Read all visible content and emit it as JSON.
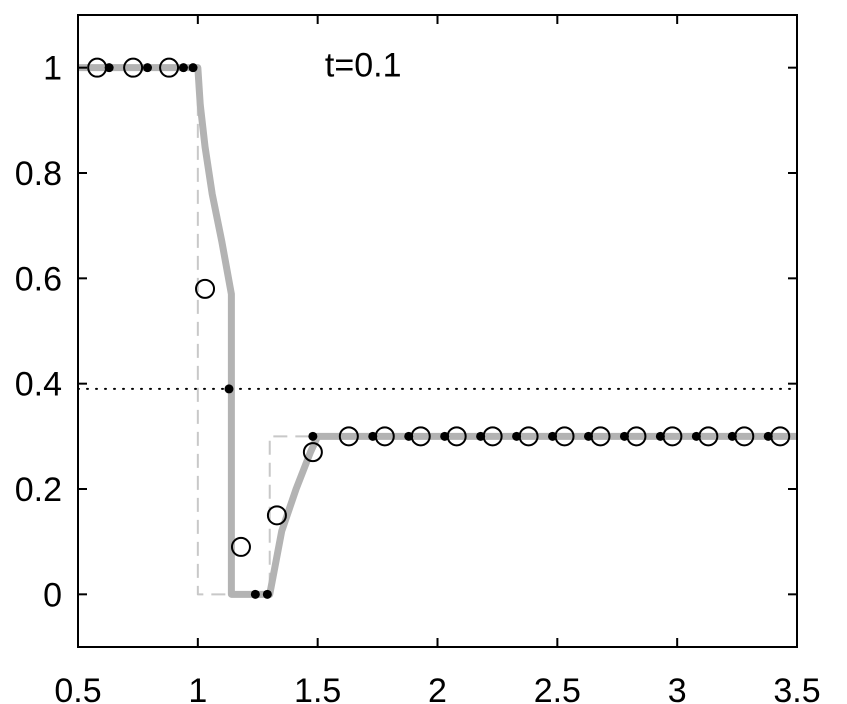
{
  "chart_data": {
    "type": "line",
    "annotation": "t=0.1",
    "annotation_x": 1.69,
    "annotation_y": 1,
    "xlim": [
      0.5,
      3.5
    ],
    "xticks": [
      0.5,
      1,
      1.5,
      2,
      2.5,
      3,
      3.5
    ],
    "ylim": [
      -0.1,
      1.1
    ],
    "yticks": [
      0,
      0.2,
      0.4,
      0.6,
      0.8,
      1
    ],
    "grid": false,
    "series": [
      {
        "style": "dashed",
        "color": "#c8c8c8",
        "x": [
          0.5,
          1,
          1,
          1.3,
          1.3,
          3.5
        ],
        "values": [
          1,
          1,
          0,
          0,
          0.3,
          0.3
        ]
      },
      {
        "style": "thick",
        "color": "#b3b3b3",
        "x": [
          0.5,
          1,
          1.01,
          1.03,
          1.06,
          1.1,
          1.14,
          1.14,
          1.3,
          1.35,
          1.41,
          1.47,
          1.5,
          3.5
        ],
        "values": [
          1,
          1,
          0.93,
          0.85,
          0.76,
          0.67,
          0.57,
          0,
          0,
          0.12,
          0.2,
          0.27,
          0.3,
          0.3
        ]
      },
      {
        "style": "dotted",
        "color": "#000000",
        "x": [
          0.5,
          3.5
        ],
        "values": [
          0.39,
          0.39
        ]
      },
      {
        "style": "open-circle",
        "color": "#000000",
        "x": [
          0.58,
          0.73,
          0.88,
          1.03,
          1.18,
          1.33,
          1.48,
          1.63,
          1.78,
          1.93,
          2.08,
          2.23,
          2.38,
          2.53,
          2.68,
          2.83,
          2.98,
          3.13,
          3.28,
          3.43
        ],
        "values": [
          1,
          1,
          1,
          0.58,
          0.09,
          0.15,
          0.27,
          0.3,
          0.3,
          0.3,
          0.3,
          0.3,
          0.3,
          0.3,
          0.3,
          0.3,
          0.3,
          0.3,
          0.3,
          0.3
        ]
      },
      {
        "style": "dot",
        "color": "#000000",
        "x": [
          0.63,
          0.79,
          0.94,
          0.98,
          1.13,
          1.24,
          1.29,
          1.48,
          1.73,
          1.88,
          2.03,
          2.18,
          2.33,
          2.48,
          2.63,
          2.78,
          2.93,
          3.08,
          3.23,
          3.38
        ],
        "values": [
          1,
          1,
          1,
          1,
          0.39,
          0,
          0,
          0.3,
          0.3,
          0.3,
          0.3,
          0.3,
          0.3,
          0.3,
          0.3,
          0.3,
          0.3,
          0.3,
          0.3,
          0.3
        ]
      }
    ]
  }
}
